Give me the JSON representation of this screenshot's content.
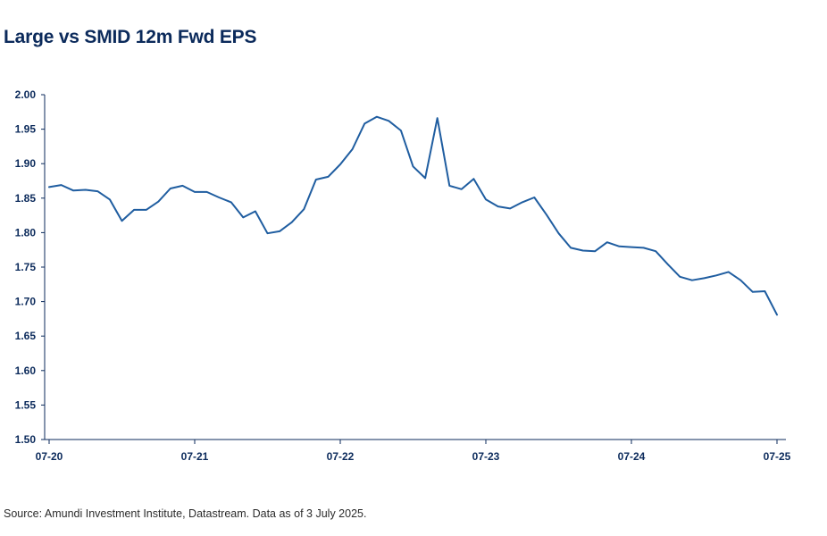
{
  "header": {
    "title": "Large vs SMID 12m Fwd EPS"
  },
  "footer": {
    "source": "Source: Amundi Investment Institute, Datastream. Data as of 3 July 2025."
  },
  "colors": {
    "line": "#1f5da0",
    "axis": "#0b2a5b",
    "text": "#0b2a5b"
  },
  "chart_data": {
    "type": "line",
    "title": "Large vs SMID 12m Fwd EPS",
    "xlabel": "",
    "ylabel": "",
    "ylim": [
      1.5,
      2.0
    ],
    "yticks": [
      "1.50",
      "1.55",
      "1.60",
      "1.65",
      "1.70",
      "1.75",
      "1.80",
      "1.85",
      "1.90",
      "1.95",
      "2.00"
    ],
    "xlim": [
      "2020-07",
      "2025-07"
    ],
    "xticks": [
      "07-20",
      "07-21",
      "07-22",
      "07-23",
      "07-24",
      "07-25"
    ],
    "grid": false,
    "legend": "none",
    "series": [
      {
        "x": [
          "2020-07",
          "2020-08",
          "2020-09",
          "2020-10",
          "2020-11",
          "2020-12",
          "2021-01",
          "2021-02",
          "2021-03",
          "2021-04",
          "2021-05",
          "2021-06",
          "2021-07",
          "2021-08",
          "2021-09",
          "2021-10",
          "2021-11",
          "2021-12",
          "2022-01",
          "2022-02",
          "2022-03",
          "2022-04",
          "2022-05",
          "2022-06",
          "2022-07",
          "2022-08",
          "2022-09",
          "2022-10",
          "2022-11",
          "2022-12",
          "2023-01",
          "2023-02",
          "2023-03",
          "2023-04",
          "2023-05",
          "2023-06",
          "2023-07",
          "2023-08",
          "2023-09",
          "2023-10",
          "2023-11",
          "2023-12",
          "2024-01",
          "2024-02",
          "2024-03",
          "2024-04",
          "2024-05",
          "2024-06",
          "2024-07",
          "2024-08",
          "2024-09",
          "2024-10",
          "2024-11",
          "2024-12",
          "2025-01",
          "2025-02",
          "2025-03",
          "2025-04",
          "2025-05",
          "2025-06",
          "2025-07"
        ],
        "values": [
          1.866,
          1.869,
          1.861,
          1.862,
          1.86,
          1.848,
          1.817,
          1.833,
          1.833,
          1.845,
          1.864,
          1.868,
          1.859,
          1.859,
          1.851,
          1.844,
          1.822,
          1.831,
          1.799,
          1.802,
          1.815,
          1.834,
          1.877,
          1.881,
          1.899,
          1.921,
          1.958,
          1.968,
          1.962,
          1.948,
          1.896,
          1.879,
          1.966,
          1.868,
          1.863,
          1.878,
          1.848,
          1.838,
          1.835,
          1.844,
          1.851,
          1.826,
          1.799,
          1.778,
          1.774,
          1.773,
          1.786,
          1.78,
          1.779,
          1.778,
          1.773,
          1.754,
          1.736,
          1.731,
          1.734,
          1.738,
          1.743,
          1.731,
          1.714,
          1.715,
          1.681
        ]
      }
    ]
  }
}
